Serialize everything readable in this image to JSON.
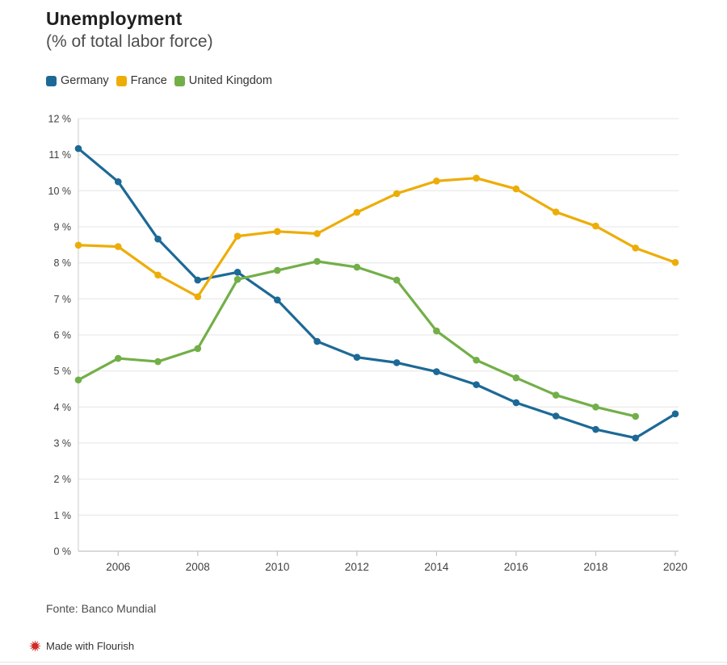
{
  "header": {
    "title": "Unemployment",
    "subtitle": "(% of total labor force)"
  },
  "legend": {
    "items": [
      {
        "label": "Germany",
        "color": "#1d6996"
      },
      {
        "label": "France",
        "color": "#edad08"
      },
      {
        "label": "United Kingdom",
        "color": "#73af48"
      }
    ]
  },
  "chart_data": {
    "type": "line",
    "title": "Unemployment",
    "subtitle": "(% of total labor force)",
    "x": [
      2005,
      2006,
      2007,
      2008,
      2009,
      2010,
      2011,
      2012,
      2013,
      2014,
      2015,
      2016,
      2017,
      2018,
      2019,
      2020
    ],
    "series": [
      {
        "name": "Germany",
        "color": "#1d6996",
        "values": [
          11.17,
          10.25,
          8.66,
          7.52,
          7.74,
          6.97,
          5.82,
          5.38,
          5.23,
          4.98,
          4.62,
          4.12,
          3.75,
          3.38,
          3.14,
          3.81
        ]
      },
      {
        "name": "France",
        "color": "#edad08",
        "values": [
          8.49,
          8.45,
          7.66,
          7.06,
          8.74,
          8.87,
          8.81,
          9.4,
          9.92,
          10.27,
          10.35,
          10.05,
          9.41,
          9.02,
          8.41,
          8.01
        ]
      },
      {
        "name": "United Kingdom",
        "color": "#73af48",
        "values": [
          4.75,
          5.35,
          5.26,
          5.62,
          7.54,
          7.79,
          8.04,
          7.88,
          7.52,
          6.11,
          5.3,
          4.81,
          4.33,
          4.0,
          3.74,
          null
        ]
      }
    ],
    "xlabel": "",
    "ylabel": "",
    "ylim": [
      0,
      12
    ],
    "y_tick_step": 1,
    "y_tick_suffix": " %",
    "x_ticks": [
      2006,
      2008,
      2010,
      2012,
      2014,
      2016,
      2018,
      2020
    ],
    "grid": "horizontal",
    "legend_position": "top"
  },
  "footer": {
    "source": "Fonte: Banco Mundial",
    "credit": "Made with Flourish"
  },
  "colors": {
    "grid": "#ebebeb",
    "y_axis_line": "#d4d4d4",
    "x_axis_line": "#c4c4c4",
    "credit_icon": "#d22929"
  }
}
